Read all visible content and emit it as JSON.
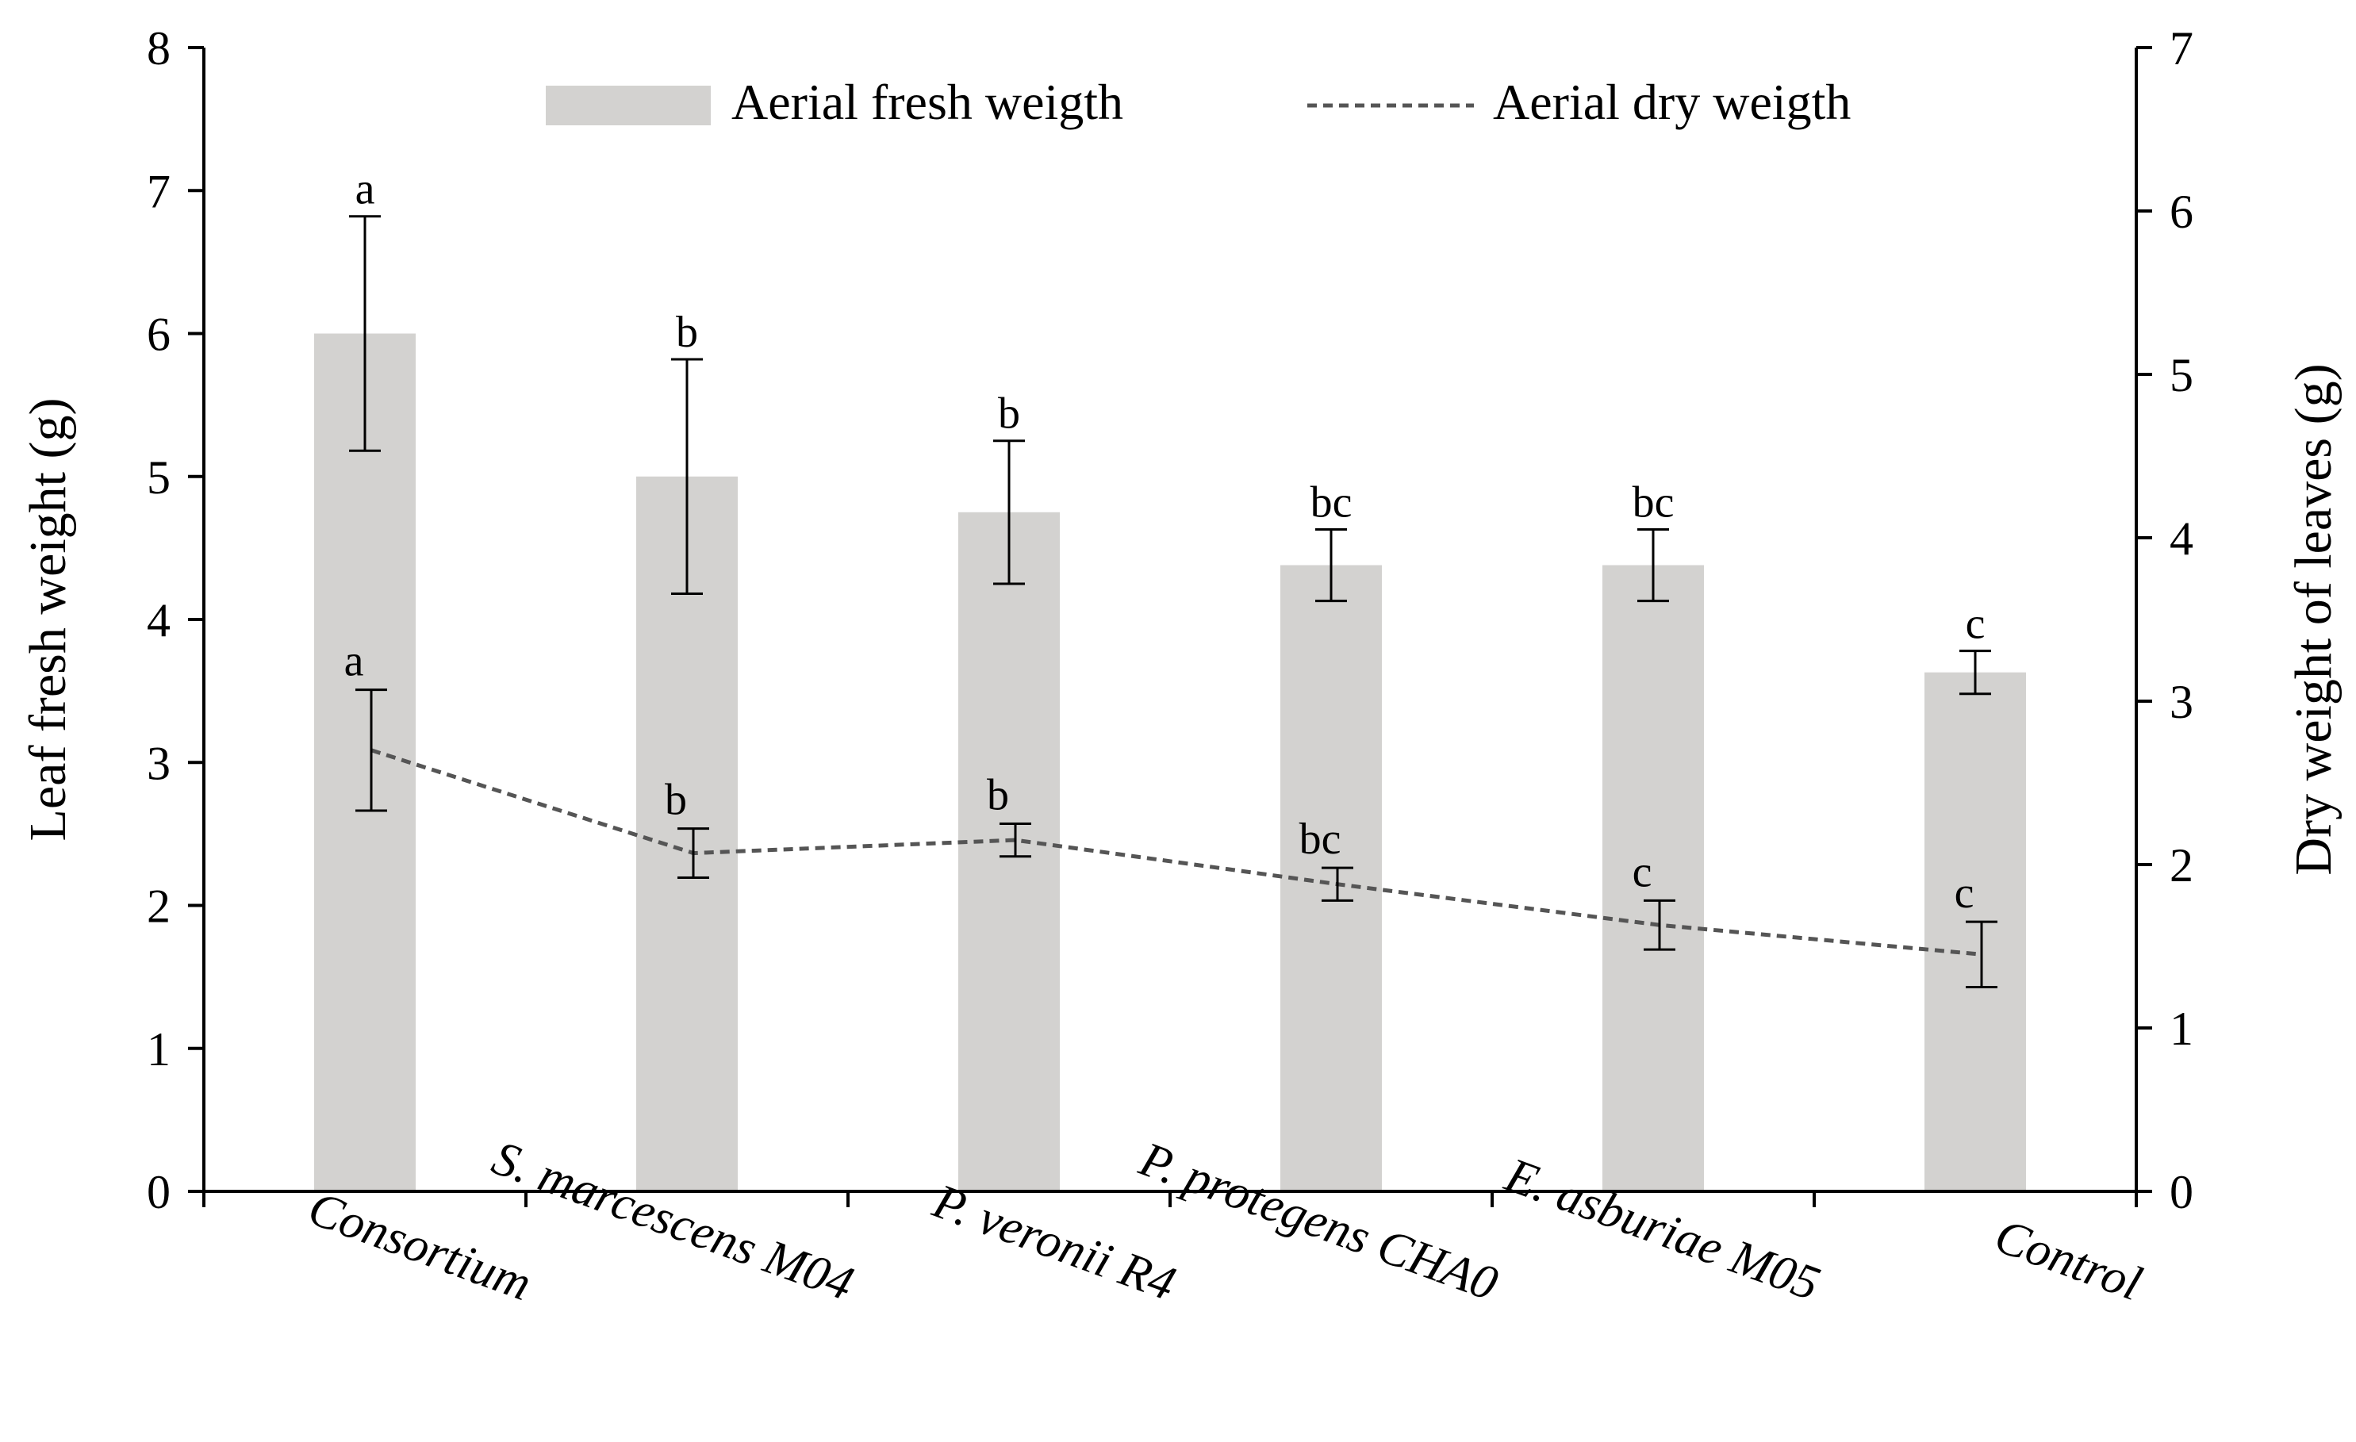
{
  "chart_data": {
    "type": "bar",
    "categories": [
      "Consortium",
      "S. marcescens M04",
      "P. veronii R4",
      "P. protegens CHA0",
      "E. asburiae M05",
      "Control"
    ],
    "ylabel": "Leaf fresh weight (g)",
    "y2label": "Dry weight of leaves (g)",
    "ylim": [
      0,
      8
    ],
    "y2lim": [
      0,
      7
    ],
    "yticks": [
      0,
      1,
      2,
      3,
      4,
      5,
      6,
      7,
      8
    ],
    "y2ticks": [
      0,
      1,
      2,
      3,
      4,
      5,
      6,
      7
    ],
    "legend_position": "top",
    "series": [
      {
        "name": "Aerial fresh weigth",
        "kind": "bar",
        "axis": "left",
        "color": "#d3d2d0",
        "values": [
          6.0,
          5.0,
          4.75,
          4.38,
          4.38,
          3.63
        ],
        "errors": [
          0.82,
          0.82,
          0.5,
          0.25,
          0.25,
          0.15
        ],
        "significance": [
          "a",
          "b",
          "b",
          "bc",
          "bc",
          "c"
        ]
      },
      {
        "name": "Aerial dry weigth",
        "kind": "line",
        "style": "dashed",
        "axis": "right",
        "color": "#555555",
        "values": [
          2.7,
          2.07,
          2.15,
          1.88,
          1.63,
          1.45
        ],
        "errors": [
          0.37,
          0.15,
          0.1,
          0.1,
          0.15,
          0.2
        ],
        "significance": [
          "a",
          "b",
          "b",
          "bc",
          "c",
          "c"
        ]
      }
    ]
  }
}
